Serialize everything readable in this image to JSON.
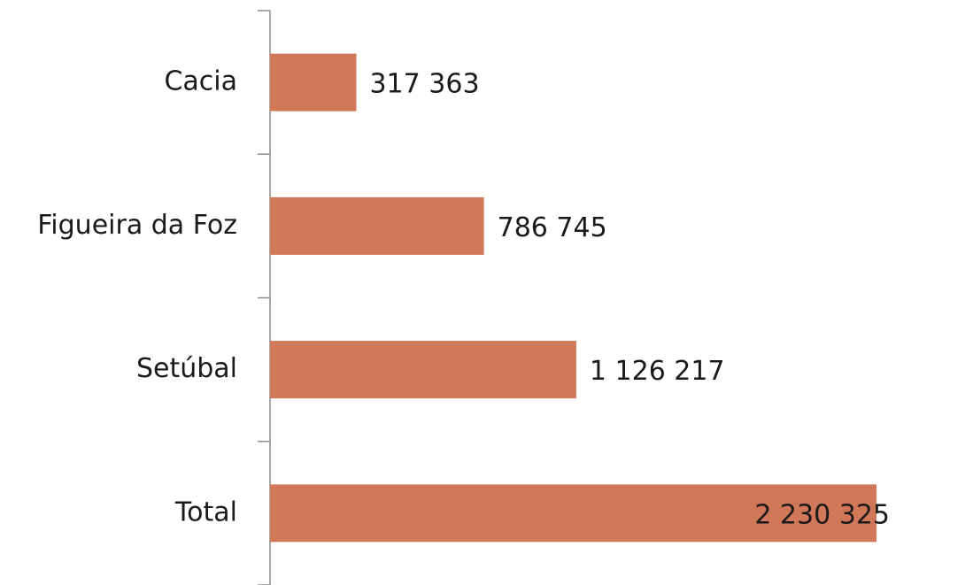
{
  "chart_data": {
    "type": "bar",
    "orientation": "horizontal",
    "categories": [
      "Cacia",
      "Figueira da Foz",
      "Setúbal",
      "Total"
    ],
    "values": [
      317363,
      786745,
      1126217,
      2230325
    ],
    "value_labels": [
      "317 363",
      "786 745",
      "1 126 217",
      "2 230 325"
    ],
    "color": "#d07857"
  }
}
